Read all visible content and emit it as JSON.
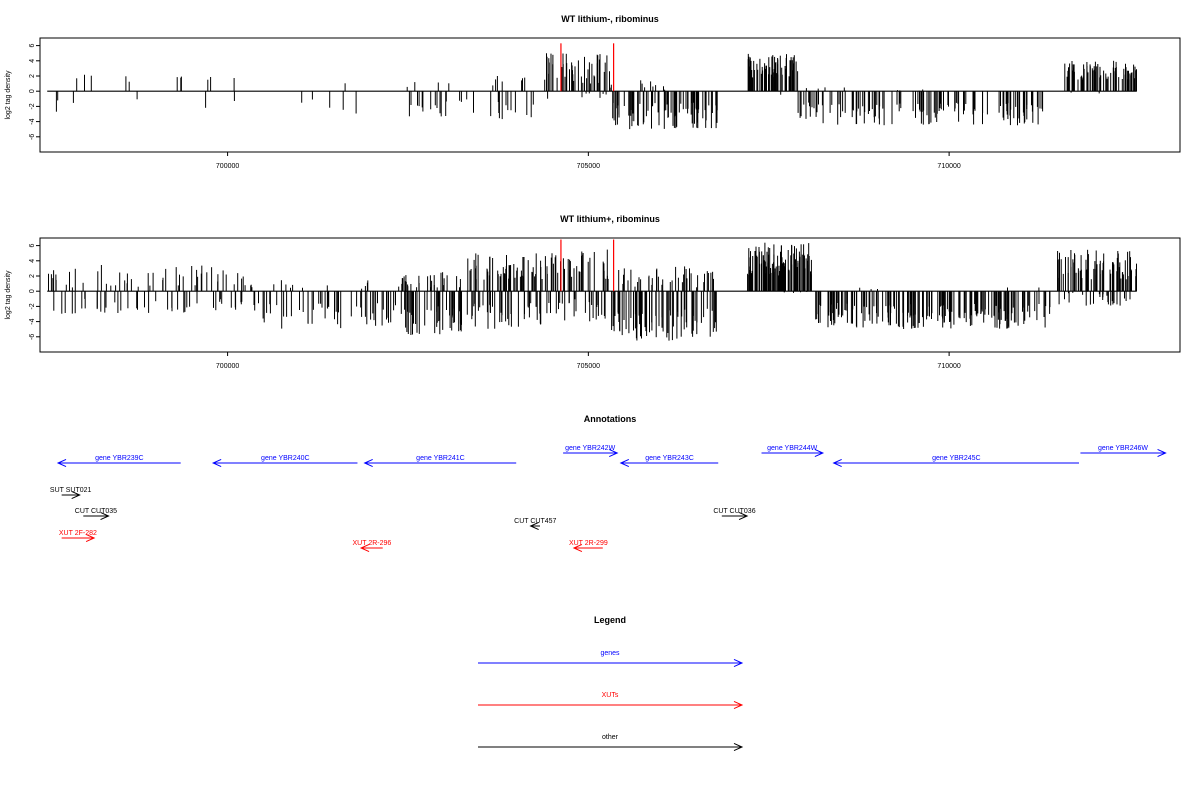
{
  "chart_data": [
    {
      "type": "bar",
      "title": "WT lithium-, ribominus",
      "ylabel": "log2 tag density",
      "xlabel": "",
      "xlim": [
        697400,
        713200
      ],
      "ylim": [
        -8,
        7
      ],
      "yticks": [
        -6,
        -4,
        -2,
        0,
        2,
        4,
        6
      ],
      "xticks": [
        700000,
        705000,
        710000
      ],
      "xtick_labels": [
        "700000",
        "705000",
        "710000"
      ],
      "grid": false,
      "seed": 11,
      "baseline": [
        697500,
        712600
      ],
      "regions": [
        {
          "from": 697500,
          "to": 699200,
          "density": 0.07,
          "pos": [
            1,
            3
          ],
          "neg": [
            1,
            3
          ]
        },
        {
          "from": 699200,
          "to": 702400,
          "density": 0.06,
          "pos": [
            1,
            2
          ],
          "neg": [
            1,
            3
          ]
        },
        {
          "from": 702400,
          "to": 703700,
          "density": 0.25,
          "pos": [
            0.5,
            1.5
          ],
          "neg": [
            1,
            3.5
          ]
        },
        {
          "from": 703700,
          "to": 704400,
          "density": 0.35,
          "pos": [
            1,
            2
          ],
          "neg": [
            1,
            4
          ]
        },
        {
          "from": 704400,
          "to": 705300,
          "density": 0.85,
          "pos": [
            1,
            5
          ],
          "neg": [
            0,
            1
          ]
        },
        {
          "from": 705300,
          "to": 706800,
          "density": 0.8,
          "pos": [
            0,
            1.5
          ],
          "neg": [
            1.5,
            5
          ]
        },
        {
          "from": 707200,
          "to": 707900,
          "density": 1.3,
          "pos": [
            1.5,
            5
          ],
          "neg": [
            0,
            0.5
          ]
        },
        {
          "from": 707900,
          "to": 711300,
          "density": 0.55,
          "pos": [
            0,
            0.5
          ],
          "neg": [
            1.5,
            4.5
          ]
        },
        {
          "from": 711600,
          "to": 712600,
          "density": 1.1,
          "pos": [
            1.5,
            4
          ],
          "neg": [
            0,
            0.3
          ]
        }
      ],
      "highlights": [
        {
          "x": 704620,
          "y": 6.3,
          "color": "#ff0000"
        },
        {
          "x": 705350,
          "y": 6.3,
          "color": "#ff0000"
        }
      ]
    },
    {
      "type": "bar",
      "title": "WT lithium+, ribominus",
      "ylabel": "log2 tag density",
      "xlabel": "",
      "xlim": [
        697400,
        713200
      ],
      "ylim": [
        -8,
        7
      ],
      "yticks": [
        -6,
        -4,
        -2,
        0,
        2,
        4,
        6
      ],
      "xticks": [
        700000,
        705000,
        710000
      ],
      "xtick_labels": [
        "700000",
        "705000",
        "710000"
      ],
      "grid": false,
      "seed": 29,
      "baseline": [
        697500,
        712600
      ],
      "regions": [
        {
          "from": 697500,
          "to": 700300,
          "density": 0.45,
          "pos": [
            0.5,
            3.5
          ],
          "neg": [
            1,
            3
          ]
        },
        {
          "from": 700300,
          "to": 702400,
          "density": 0.45,
          "pos": [
            0.2,
            1.5
          ],
          "neg": [
            1.5,
            5
          ]
        },
        {
          "from": 702400,
          "to": 703300,
          "density": 1.1,
          "pos": [
            0.5,
            2.5
          ],
          "neg": [
            2,
            6
          ]
        },
        {
          "from": 703300,
          "to": 704400,
          "density": 1.2,
          "pos": [
            1.5,
            5
          ],
          "neg": [
            1.5,
            5
          ]
        },
        {
          "from": 704400,
          "to": 705300,
          "density": 1.0,
          "pos": [
            1.5,
            5.5
          ],
          "neg": [
            1,
            4
          ]
        },
        {
          "from": 705300,
          "to": 706800,
          "density": 1.1,
          "pos": [
            0.5,
            3.5
          ],
          "neg": [
            2,
            6.5
          ]
        },
        {
          "from": 707200,
          "to": 708100,
          "density": 1.6,
          "pos": [
            2,
            6.5
          ],
          "neg": [
            0,
            0.3
          ]
        },
        {
          "from": 708100,
          "to": 711400,
          "density": 0.8,
          "pos": [
            0,
            0.5
          ],
          "neg": [
            1.5,
            5
          ]
        },
        {
          "from": 711500,
          "to": 712600,
          "density": 1.3,
          "pos": [
            1.5,
            5.5
          ],
          "neg": [
            0,
            2
          ]
        }
      ],
      "highlights": [
        {
          "x": 704620,
          "y": 6.8,
          "color": "#ff0000"
        },
        {
          "x": 705350,
          "y": 6.8,
          "color": "#ff0000"
        }
      ]
    }
  ],
  "annotations": {
    "title": "Annotations",
    "xlim": [
      697400,
      713200
    ],
    "items": [
      {
        "label": "gene YBR239C",
        "start": 697650,
        "end": 699350,
        "strand": "-",
        "row": 0,
        "color": "#0000ff"
      },
      {
        "label": "gene YBR240C",
        "start": 699800,
        "end": 701800,
        "strand": "-",
        "row": 0,
        "color": "#0000ff"
      },
      {
        "label": "gene YBR241C",
        "start": 701900,
        "end": 704000,
        "strand": "-",
        "row": 0,
        "color": "#0000ff"
      },
      {
        "label": "gene YBR242W",
        "start": 704650,
        "end": 705400,
        "strand": "+",
        "row": 1,
        "color": "#0000ff"
      },
      {
        "label": "gene YBR243C",
        "start": 705450,
        "end": 706800,
        "strand": "-",
        "row": 0,
        "color": "#0000ff"
      },
      {
        "label": "gene YBR244W",
        "start": 707400,
        "end": 708250,
        "strand": "+",
        "row": 1,
        "color": "#0000ff"
      },
      {
        "label": "gene YBR245C",
        "start": 708400,
        "end": 711800,
        "strand": "-",
        "row": 0,
        "color": "#0000ff"
      },
      {
        "label": "gene YBR246W",
        "start": 711820,
        "end": 713000,
        "strand": "+",
        "row": 1,
        "color": "#0000ff"
      },
      {
        "label": "SUT SUT021",
        "start": 697700,
        "end": 697950,
        "strand": "+",
        "row": 2,
        "color": "#000000"
      },
      {
        "label": "CUT CUT035",
        "start": 698000,
        "end": 698350,
        "strand": "+",
        "row": 3,
        "color": "#000000"
      },
      {
        "label": "CUT CUT457",
        "start": 704200,
        "end": 704330,
        "strand": "-",
        "row": 4,
        "color": "#000000"
      },
      {
        "label": "CUT CUT036",
        "start": 706850,
        "end": 707200,
        "strand": "+",
        "row": 3,
        "color": "#000000"
      },
      {
        "label": "XUT 2F-282",
        "start": 697700,
        "end": 698150,
        "strand": "+",
        "row": 5,
        "color": "#ff0000"
      },
      {
        "label": "XUT 2R-296",
        "start": 701850,
        "end": 702150,
        "strand": "-",
        "row": 6,
        "color": "#ff0000"
      },
      {
        "label": "XUT 2R-299",
        "start": 704800,
        "end": 705200,
        "strand": "-",
        "row": 6,
        "color": "#ff0000"
      }
    ]
  },
  "legend": {
    "title": "Legend",
    "items": [
      {
        "label": "genes",
        "color": "#0000ff"
      },
      {
        "label": "XUTs",
        "color": "#ff0000"
      },
      {
        "label": "other",
        "color": "#000000"
      }
    ]
  }
}
